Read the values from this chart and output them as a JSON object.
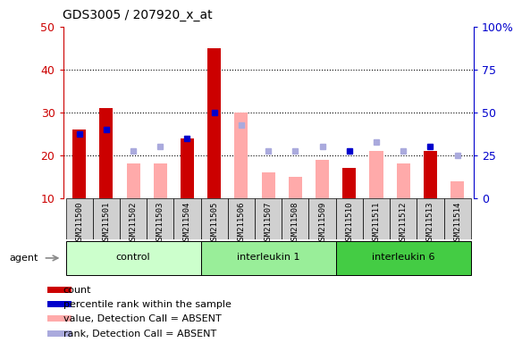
{
  "title": "GDS3005 / 207920_x_at",
  "samples": [
    "GSM211500",
    "GSM211501",
    "GSM211502",
    "GSM211503",
    "GSM211504",
    "GSM211505",
    "GSM211506",
    "GSM211507",
    "GSM211508",
    "GSM211509",
    "GSM211510",
    "GSM211511",
    "GSM211512",
    "GSM211513",
    "GSM211514"
  ],
  "count_present": [
    26,
    31,
    null,
    null,
    24,
    45,
    null,
    null,
    null,
    null,
    17,
    null,
    null,
    21,
    null
  ],
  "rank_present": [
    25,
    26,
    null,
    null,
    24,
    30,
    null,
    null,
    null,
    null,
    21,
    null,
    null,
    22,
    null
  ],
  "value_absent": [
    null,
    null,
    18,
    18,
    null,
    null,
    30,
    16,
    15,
    19,
    null,
    21,
    18,
    null,
    14
  ],
  "rank_absent": [
    null,
    null,
    21,
    22,
    null,
    null,
    27,
    21,
    21,
    22,
    null,
    23,
    21,
    null,
    20
  ],
  "ylim": [
    10,
    50
  ],
  "y2lim": [
    0,
    100
  ],
  "yticks": [
    10,
    20,
    30,
    40,
    50
  ],
  "y2ticks": [
    0,
    25,
    50,
    75,
    100
  ],
  "y2ticklabels": [
    "0",
    "25",
    "50",
    "75",
    "100%"
  ],
  "gridlines": [
    20,
    30,
    40
  ],
  "groups": [
    {
      "label": "control",
      "start": 0,
      "end": 5,
      "color": "#ccffcc"
    },
    {
      "label": "interleukin 1",
      "start": 5,
      "end": 10,
      "color": "#99ee99"
    },
    {
      "label": "interleukin 6",
      "start": 10,
      "end": 15,
      "color": "#44cc44"
    }
  ],
  "count_color": "#cc0000",
  "rank_color": "#0000cc",
  "value_absent_color": "#ffaaaa",
  "rank_absent_color": "#aaaadd",
  "bar_width": 0.5,
  "agent_label": "agent",
  "legend_items": [
    {
      "label": "count",
      "color": "#cc0000"
    },
    {
      "label": "percentile rank within the sample",
      "color": "#0000cc"
    },
    {
      "label": "value, Detection Call = ABSENT",
      "color": "#ffaaaa"
    },
    {
      "label": "rank, Detection Call = ABSENT",
      "color": "#aaaadd"
    }
  ]
}
